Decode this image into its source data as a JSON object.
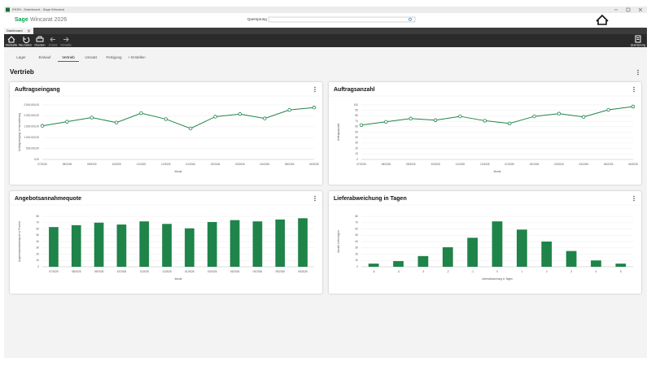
{
  "window": {
    "title": "EKSH - Dashboard - Sage Wincarat"
  },
  "header": {
    "logo": "Sage",
    "product": "Wincarat 2026",
    "search_label": "Quersprung"
  },
  "tab": "Dashboard",
  "toolbar": [
    "Startseite",
    "Neu laden",
    "Drucken",
    "Zurück",
    "Vorwärts"
  ],
  "toolbar_right": "Quersprung",
  "subtabs": [
    "Lager",
    "Einkauf",
    "Vertrieb",
    "Umsatz",
    "Fertigung",
    "+ Erstellen"
  ],
  "active_subtab": 2,
  "section": "Vertrieb",
  "chart_data": [
    {
      "type": "line",
      "title": "Auftragseingang",
      "ylabel": "Auftragseingang in Hauswährung",
      "xlabel": "Monat",
      "color": "#1e8449",
      "categories": [
        "07/2025",
        "08/2025",
        "09/2025",
        "10/2025",
        "11/2025",
        "12/2025",
        "01/2026",
        "02/2026",
        "03/2026",
        "04/2026",
        "05/2026",
        "06/2026"
      ],
      "values": [
        1540000,
        1730000,
        1920000,
        1690000,
        2120000,
        1850000,
        1420000,
        1960000,
        2080000,
        1880000,
        2270000,
        2380000
      ],
      "ylim": [
        0,
        2500000
      ],
      "yticks": [
        {
          "value": 0,
          "label": "0,00"
        },
        {
          "value": 500000,
          "label": "500.000,00"
        },
        {
          "value": 1000000,
          "label": "1.000.000,00"
        },
        {
          "value": 1500000,
          "label": "1.500.000,00"
        },
        {
          "value": 2000000,
          "label": "2.000.000,00"
        },
        {
          "value": 2500000,
          "label": "2.500.000,00"
        }
      ],
      "grid": true
    },
    {
      "type": "line",
      "title": "Auftragsanzahl",
      "ylabel": "Auftragsanzahl",
      "xlabel": "Monat",
      "color": "#1e8449",
      "categories": [
        "07/2025",
        "08/2025",
        "09/2025",
        "10/2025",
        "11/2025",
        "12/2025",
        "01/2026",
        "02/2026",
        "03/2026",
        "04/2026",
        "05/2026",
        "06/2026"
      ],
      "values": [
        63,
        69,
        75,
        72,
        79,
        71,
        66,
        79,
        84,
        78,
        91,
        97
      ],
      "ylim": [
        0,
        100
      ],
      "yticks": [
        0,
        10,
        20,
        30,
        40,
        50,
        60,
        70,
        80,
        90,
        100
      ],
      "grid": true
    },
    {
      "type": "bar",
      "title": "Angebotsannahmequote",
      "ylabel": "Angebotsannahmequote in Prozent",
      "xlabel": "Monat",
      "color": "#1e8449",
      "categories": [
        "07/2025",
        "08/2025",
        "09/2025",
        "10/2025",
        "11/2025",
        "12/2025",
        "01/2026",
        "02/2026",
        "03/2026",
        "04/2026",
        "05/2026",
        "06/2026"
      ],
      "values": [
        63,
        66,
        70,
        67,
        72,
        68,
        61,
        71,
        74,
        72,
        75,
        77
      ],
      "ylim": [
        0,
        80
      ],
      "yticks": [
        0,
        10,
        20,
        30,
        40,
        50,
        60,
        70,
        80
      ],
      "grid": true
    },
    {
      "type": "bar",
      "title": "Lieferabweichung in Tagen",
      "ylabel": "Anzahl Lieferungen",
      "xlabel": "Lieferabweichung in Tagen",
      "color": "#1e8449",
      "categories": [
        "-5",
        "-4",
        "-3",
        "-2",
        "-1",
        "0",
        "1",
        "2",
        "3",
        "4",
        "5"
      ],
      "values": [
        5,
        9,
        17,
        31,
        46,
        72,
        59,
        40,
        25,
        10,
        5
      ],
      "ylim": [
        0,
        80
      ],
      "yticks": [
        0,
        10,
        20,
        30,
        40,
        50,
        60,
        70,
        80
      ],
      "grid": true
    }
  ]
}
